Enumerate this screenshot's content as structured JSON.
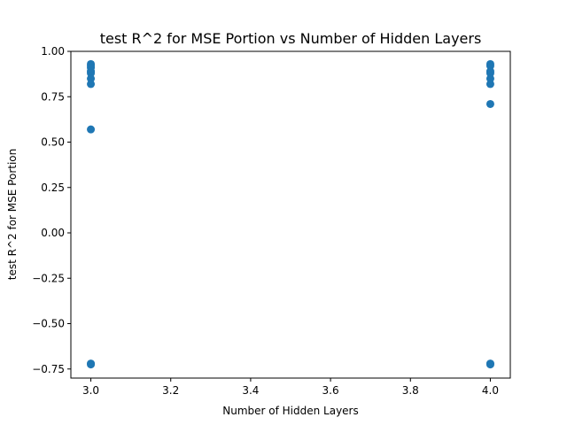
{
  "chart_data": {
    "type": "scatter",
    "title": "test R^2 for MSE Portion vs Number of Hidden Layers",
    "xlabel": "Number of Hidden Layers",
    "ylabel": "test R^2 for MSE Portion",
    "xlim": [
      2.95,
      4.05
    ],
    "ylim": [
      -0.8,
      1.0
    ],
    "grid": false,
    "marker_color": "#1f77b4",
    "xticks": [
      3.0,
      3.2,
      3.4,
      3.6,
      3.8,
      4.0
    ],
    "xtick_labels": [
      "3.0",
      "3.2",
      "3.4",
      "3.6",
      "3.8",
      "4.0"
    ],
    "yticks": [
      1.0,
      0.75,
      0.5,
      0.25,
      0.0,
      -0.25,
      -0.5,
      -0.75
    ],
    "ytick_labels": [
      "1.00",
      "0.75",
      "0.50",
      "0.25",
      "0.00",
      "−0.25",
      "−0.50",
      "−0.75"
    ],
    "points": [
      {
        "x": 3.0,
        "y": 0.93
      },
      {
        "x": 3.0,
        "y": 0.92
      },
      {
        "x": 3.0,
        "y": 0.91
      },
      {
        "x": 3.0,
        "y": 0.89
      },
      {
        "x": 3.0,
        "y": 0.88
      },
      {
        "x": 3.0,
        "y": 0.85
      },
      {
        "x": 3.0,
        "y": 0.82
      },
      {
        "x": 3.0,
        "y": 0.57
      },
      {
        "x": 3.0,
        "y": -0.72
      },
      {
        "x": 3.0,
        "y": -0.725
      },
      {
        "x": 4.0,
        "y": 0.93
      },
      {
        "x": 4.0,
        "y": 0.92
      },
      {
        "x": 4.0,
        "y": 0.89
      },
      {
        "x": 4.0,
        "y": 0.88
      },
      {
        "x": 4.0,
        "y": 0.85
      },
      {
        "x": 4.0,
        "y": 0.82
      },
      {
        "x": 4.0,
        "y": 0.71
      },
      {
        "x": 4.0,
        "y": -0.72
      },
      {
        "x": 4.0,
        "y": -0.725
      }
    ]
  }
}
